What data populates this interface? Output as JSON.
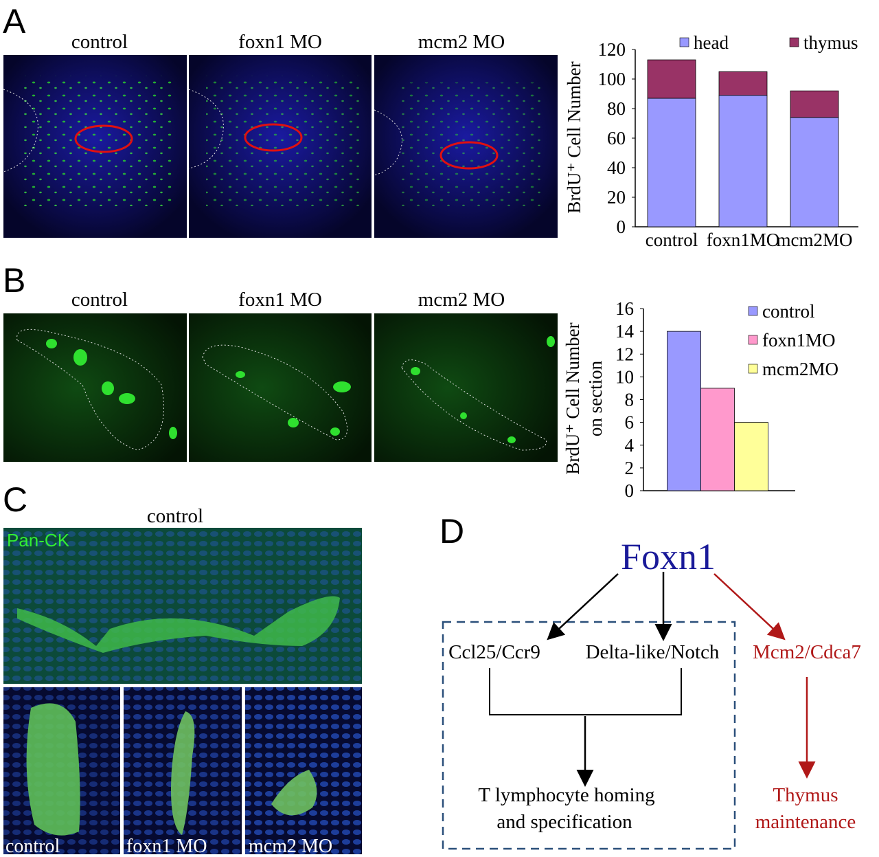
{
  "panel_labels": [
    "A",
    "B",
    "C",
    "D"
  ],
  "panel_a": {
    "image_labels": [
      "control",
      "foxn1 MO",
      "mcm2 MO"
    ]
  },
  "panel_b": {
    "image_labels": [
      "control",
      "foxn1 MO",
      "mcm2 MO"
    ]
  },
  "panel_c": {
    "title": "control",
    "stain": "Pan-CK",
    "image_labels": [
      "control",
      "foxn1 MO",
      "mcm2 MO"
    ]
  },
  "chart_data": [
    {
      "type": "stacked_bar",
      "categories": [
        "control",
        "foxn1MO",
        "mcm2MO"
      ],
      "series": [
        {
          "name": "head",
          "color": "#9999ff",
          "values": [
            87,
            89,
            74
          ]
        },
        {
          "name": "thymus",
          "color": "#993366",
          "values": [
            26,
            16,
            18
          ]
        }
      ],
      "y_label": [
        "BrdU⁺ Cell Number"
      ],
      "ylim": [
        0,
        120
      ],
      "yticks": [
        0,
        20,
        40,
        60,
        80,
        100,
        120
      ],
      "grid": false,
      "legend": "top"
    },
    {
      "type": "bar",
      "categories": [
        null
      ],
      "series": [
        {
          "name": "control",
          "color": "#9999ff",
          "values": [
            14
          ]
        },
        {
          "name": "foxn1MO",
          "color": "#ff99cc",
          "values": [
            9
          ]
        },
        {
          "name": "mcm2MO",
          "color": "#ffff99",
          "values": [
            6
          ]
        }
      ],
      "y_label": [
        "BrdU⁺ Cell Number",
        "on section"
      ],
      "ylim": [
        0,
        16
      ],
      "yticks": [
        0,
        2,
        4,
        6,
        8,
        10,
        12,
        14,
        16
      ],
      "grid": false,
      "legend": "right"
    }
  ],
  "diagram": {
    "root": "Foxn1",
    "targets": [
      "Ccl25/Ccr9",
      "Delta-like/Notch",
      "Mcm2/Cdca7"
    ],
    "outcomes": [
      [
        "T lymphocyte homing",
        "and specification"
      ],
      [
        "Thymus",
        "maintenance"
      ]
    ]
  }
}
